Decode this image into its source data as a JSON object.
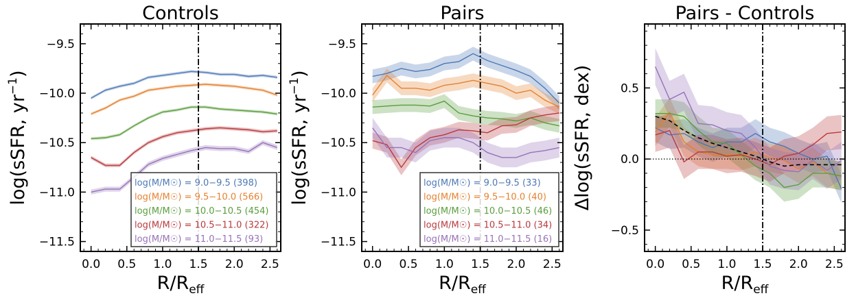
{
  "colors": {
    "mass_bins": [
      "#4c78b5",
      "#e4812f",
      "#5a9d3c",
      "#b8393d",
      "#9672b8"
    ],
    "mean_line": "#000000"
  },
  "chart_data": [
    {
      "type": "line",
      "title": "Controls",
      "xlabel": "R/R",
      "xlabel_sub": "eff",
      "ylabel": "log(sSFR, yr",
      "ylabel_sup": "−1",
      "ylabel_end": ")",
      "xlim": [
        -0.15,
        2.65
      ],
      "ylim": [
        -11.6,
        -9.3
      ],
      "xticks": [
        0.0,
        0.5,
        1.0,
        1.5,
        2.0,
        2.5
      ],
      "xtick_labels": [
        "0.0",
        "0.5",
        "1.0",
        "1.5",
        "2.0",
        "2.5"
      ],
      "yticks": [
        -11.5,
        -11.0,
        -10.5,
        -10.0,
        -9.5
      ],
      "ytick_labels": [
        "−11.5",
        "−11.0",
        "−10.5",
        "−10.0",
        "−9.5"
      ],
      "vline": 1.5,
      "legend_position": "lower-right",
      "x": [
        0.0,
        0.2,
        0.4,
        0.6,
        0.8,
        1.0,
        1.2,
        1.4,
        1.6,
        1.8,
        2.0,
        2.2,
        2.4,
        2.6
      ],
      "series": [
        {
          "name": "log(M/M☉) = 9.0−9.5 (398)",
          "values": [
            -10.05,
            -9.97,
            -9.93,
            -9.9,
            -9.84,
            -9.82,
            -9.8,
            -9.78,
            -9.79,
            -9.81,
            -9.81,
            -9.83,
            -9.82,
            -9.84
          ],
          "err": [
            0.015,
            0.015,
            0.015,
            0.015,
            0.015,
            0.015,
            0.015,
            0.015,
            0.015,
            0.015,
            0.015,
            0.015,
            0.015,
            0.015
          ]
        },
        {
          "name": "log(M/M☉) = 9.5−10.0 (566)",
          "values": [
            -10.21,
            -10.15,
            -10.07,
            -10.03,
            -9.97,
            -9.95,
            -9.93,
            -9.92,
            -9.91,
            -9.92,
            -9.93,
            -9.95,
            -9.97,
            -10.02
          ],
          "err": [
            0.015,
            0.015,
            0.015,
            0.015,
            0.015,
            0.015,
            0.015,
            0.015,
            0.015,
            0.015,
            0.015,
            0.015,
            0.015,
            0.015
          ]
        },
        {
          "name": "log(M/M☉) = 10.0−10.5 (454)",
          "values": [
            -10.46,
            -10.45,
            -10.42,
            -10.33,
            -10.25,
            -10.19,
            -10.17,
            -10.14,
            -10.14,
            -10.16,
            -10.17,
            -10.18,
            -10.19,
            -10.21
          ],
          "err": [
            0.015,
            0.015,
            0.015,
            0.015,
            0.015,
            0.015,
            0.015,
            0.015,
            0.015,
            0.015,
            0.015,
            0.015,
            0.015,
            0.015
          ]
        },
        {
          "name": "log(M/M☉) = 10.5−11.0 (322)",
          "values": [
            -10.65,
            -10.73,
            -10.73,
            -10.6,
            -10.5,
            -10.44,
            -10.4,
            -10.38,
            -10.36,
            -10.35,
            -10.36,
            -10.37,
            -10.39,
            -10.38
          ],
          "err": [
            0.018,
            0.018,
            0.018,
            0.018,
            0.018,
            0.018,
            0.018,
            0.018,
            0.018,
            0.018,
            0.018,
            0.018,
            0.018,
            0.018
          ]
        },
        {
          "name": "log(M/M☉) = 11.0−11.5 (93)",
          "values": [
            -11.0,
            -10.97,
            -10.97,
            -10.85,
            -10.72,
            -10.66,
            -10.62,
            -10.58,
            -10.55,
            -10.56,
            -10.56,
            -10.59,
            -10.5,
            -10.55
          ],
          "err": [
            0.025,
            0.025,
            0.025,
            0.025,
            0.025,
            0.025,
            0.025,
            0.025,
            0.025,
            0.025,
            0.025,
            0.025,
            0.025,
            0.025
          ]
        }
      ]
    },
    {
      "type": "line",
      "title": "Pairs",
      "xlabel": "R/R",
      "xlabel_sub": "eff",
      "ylabel": "log(sSFR, yr",
      "ylabel_sup": "−1",
      "ylabel_end": ")",
      "xlim": [
        -0.15,
        2.65
      ],
      "ylim": [
        -11.6,
        -9.3
      ],
      "xticks": [
        0.0,
        0.5,
        1.0,
        1.5,
        2.0,
        2.5
      ],
      "xtick_labels": [
        "0.0",
        "0.5",
        "1.0",
        "1.5",
        "2.0",
        "2.5"
      ],
      "yticks": [
        -11.5,
        -11.0,
        -10.5,
        -10.0,
        -9.5
      ],
      "ytick_labels": [
        "−11.5",
        "−11.0",
        "−10.5",
        "−10.0",
        "−9.5"
      ],
      "vline": 1.5,
      "legend_position": "lower-right",
      "x": [
        0.0,
        0.2,
        0.4,
        0.6,
        0.8,
        1.0,
        1.2,
        1.4,
        1.6,
        1.8,
        2.0,
        2.2,
        2.4,
        2.6
      ],
      "series": [
        {
          "name": "log(M/M☉) = 9.0−9.5 (33)",
          "values": [
            -9.83,
            -9.8,
            -9.75,
            -9.78,
            -9.76,
            -9.7,
            -9.68,
            -9.6,
            -9.67,
            -9.72,
            -9.77,
            -9.83,
            -9.95,
            -10.1
          ],
          "err": [
            0.07,
            0.07,
            0.07,
            0.07,
            0.07,
            0.07,
            0.07,
            0.07,
            0.07,
            0.07,
            0.07,
            0.07,
            0.07,
            0.07
          ]
        },
        {
          "name": "log(M/M☉) = 9.5−10.0 (40)",
          "values": [
            -10.02,
            -9.82,
            -9.95,
            -9.95,
            -9.97,
            -9.92,
            -9.9,
            -9.87,
            -9.9,
            -9.93,
            -10.0,
            -9.97,
            -10.07,
            -10.14
          ],
          "err": [
            0.07,
            0.07,
            0.07,
            0.07,
            0.07,
            0.07,
            0.07,
            0.07,
            0.07,
            0.07,
            0.07,
            0.07,
            0.07,
            0.07
          ]
        },
        {
          "name": "log(M/M☉) = 10.0−10.5 (46)",
          "values": [
            -10.14,
            -10.13,
            -10.12,
            -10.12,
            -10.13,
            -10.08,
            -10.2,
            -10.23,
            -10.25,
            -10.26,
            -10.28,
            -10.25,
            -10.3,
            -10.33
          ],
          "err": [
            0.07,
            0.07,
            0.07,
            0.07,
            0.07,
            0.07,
            0.07,
            0.07,
            0.07,
            0.07,
            0.07,
            0.07,
            0.07,
            0.07
          ]
        },
        {
          "name": "log(M/M☉) = 10.5−11.0 (34)",
          "values": [
            -10.48,
            -10.52,
            -10.75,
            -10.55,
            -10.45,
            -10.42,
            -10.37,
            -10.38,
            -10.4,
            -10.33,
            -10.32,
            -10.25,
            -10.22,
            -10.2
          ],
          "err": [
            0.08,
            0.08,
            0.08,
            0.08,
            0.08,
            0.08,
            0.08,
            0.08,
            0.08,
            0.08,
            0.08,
            0.08,
            0.08,
            0.08
          ]
        },
        {
          "name": "log(M/M☉) = 11.0−11.5 (16)",
          "values": [
            -10.35,
            -10.55,
            -10.55,
            -10.6,
            -10.48,
            -10.45,
            -10.45,
            -10.5,
            -10.6,
            -10.65,
            -10.65,
            -10.6,
            -10.58,
            -10.55
          ],
          "err": [
            0.1,
            0.1,
            0.1,
            0.1,
            0.1,
            0.1,
            0.1,
            0.1,
            0.1,
            0.1,
            0.1,
            0.1,
            0.1,
            0.1
          ]
        }
      ]
    },
    {
      "type": "line",
      "title": "Pairs - Controls",
      "xlabel": "R/R",
      "xlabel_sub": "eff",
      "ylabel": "Δlog(sSFR, dex)",
      "xlim": [
        -0.15,
        2.65
      ],
      "ylim": [
        -0.65,
        0.95
      ],
      "xticks": [
        0.0,
        0.5,
        1.0,
        1.5,
        2.0,
        2.5
      ],
      "xtick_labels": [
        "0.0",
        "0.5",
        "1.0",
        "1.5",
        "2.0",
        "2.5"
      ],
      "yticks": [
        -0.5,
        0.0,
        0.5
      ],
      "ytick_labels": [
        "−0.5",
        "0.0",
        "0.5"
      ],
      "vline": 1.5,
      "hline": 0.0,
      "x": [
        0.0,
        0.2,
        0.4,
        0.6,
        0.8,
        1.0,
        1.2,
        1.4,
        1.6,
        1.8,
        2.0,
        2.2,
        2.4,
        2.6
      ],
      "series": [
        {
          "name": "",
          "values": [
            0.22,
            0.17,
            0.18,
            0.12,
            0.08,
            0.12,
            0.12,
            0.18,
            0.12,
            0.09,
            0.04,
            0.0,
            0.02,
            -0.21
          ],
          "err": [
            0.1,
            0.1,
            0.1,
            0.1,
            0.1,
            0.1,
            0.1,
            0.1,
            0.1,
            0.1,
            0.1,
            0.1,
            0.1,
            0.1
          ]
        },
        {
          "name": "",
          "values": [
            0.19,
            0.33,
            0.12,
            0.05,
            0.03,
            0.03,
            0.02,
            0.05,
            0.01,
            -0.01,
            -0.07,
            -0.02,
            -0.1,
            -0.12
          ],
          "err": [
            0.1,
            0.1,
            0.1,
            0.1,
            0.1,
            0.1,
            0.1,
            0.1,
            0.1,
            0.1,
            0.1,
            0.1,
            0.1,
            0.1
          ]
        },
        {
          "name": "",
          "values": [
            0.32,
            0.32,
            0.3,
            0.2,
            0.12,
            0.11,
            0.03,
            -0.05,
            -0.1,
            -0.2,
            -0.18,
            -0.1,
            -0.1,
            -0.12
          ],
          "err": [
            0.1,
            0.1,
            0.1,
            0.1,
            0.1,
            0.1,
            0.1,
            0.1,
            0.1,
            0.1,
            0.1,
            0.1,
            0.1,
            0.1
          ]
        },
        {
          "name": "",
          "values": [
            0.17,
            0.2,
            -0.02,
            0.05,
            0.05,
            0.02,
            0.03,
            0.0,
            -0.04,
            0.02,
            0.04,
            0.1,
            0.18,
            0.19
          ],
          "err": [
            0.12,
            0.12,
            0.12,
            0.12,
            0.12,
            0.12,
            0.12,
            0.12,
            0.12,
            0.12,
            0.12,
            0.12,
            0.12,
            0.12
          ]
        },
        {
          "name": "",
          "values": [
            0.65,
            0.42,
            0.47,
            0.25,
            0.24,
            0.2,
            0.18,
            0.08,
            -0.05,
            -0.08,
            -0.09,
            -0.01,
            -0.08,
            -0.01
          ],
          "err": [
            0.13,
            0.13,
            0.13,
            0.13,
            0.13,
            0.13,
            0.13,
            0.13,
            0.13,
            0.13,
            0.13,
            0.13,
            0.13,
            0.13
          ]
        },
        {
          "name": "",
          "mean": true,
          "values": [
            0.3,
            0.27,
            0.2,
            0.15,
            0.11,
            0.08,
            0.05,
            0.02,
            -0.02,
            -0.05,
            -0.04,
            -0.04,
            -0.04,
            -0.04
          ]
        }
      ]
    }
  ]
}
